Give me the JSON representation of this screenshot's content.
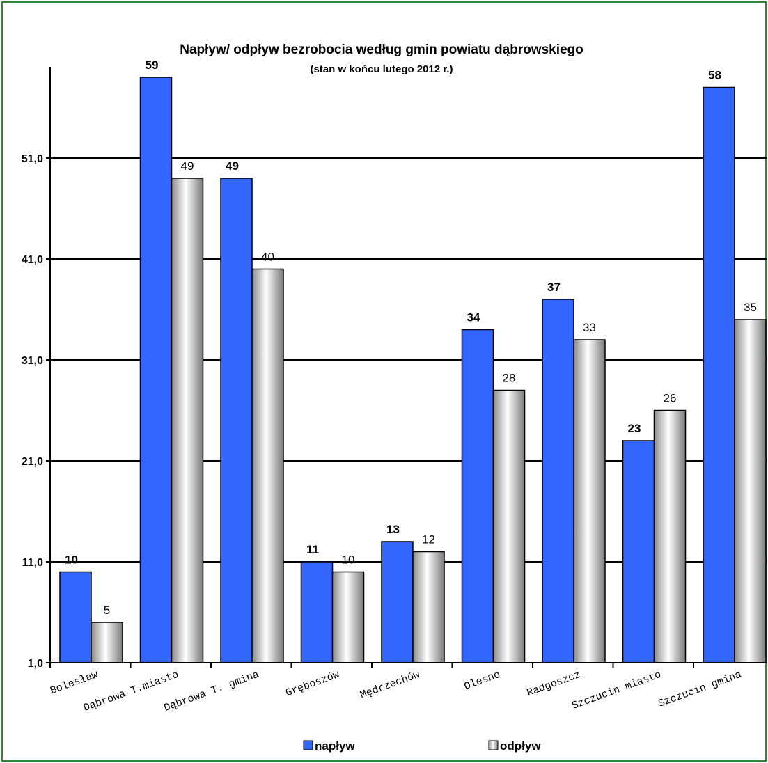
{
  "chart_data": {
    "type": "bar",
    "title": "Napływ/ odpływ bezrobocia według gmin powiatu dąbrowskiego",
    "subtitle": "(stan w końcu lutego 2012 r.)",
    "categories": [
      "Bolesław",
      "Dąbrowa T.miasto",
      "Dąbrowa T. gmina",
      "Gręboszów",
      "Mędrzechów",
      "Olesno",
      "Radgoszcz",
      "Szczucin miasto",
      "Szczucin gmina"
    ],
    "series": [
      {
        "name": "napływ",
        "values": [
          10,
          59,
          49,
          11,
          13,
          34,
          37,
          23,
          58
        ],
        "color": "#3366ff"
      },
      {
        "name": "odpływ",
        "values": [
          5,
          49,
          40,
          10,
          12,
          28,
          33,
          26,
          35
        ],
        "color": "#e8e8e8"
      }
    ],
    "ylim": [
      1,
      60
    ],
    "yticks": [
      "1,0",
      "11,0",
      "21,0",
      "31,0",
      "41,0",
      "51,0"
    ],
    "ytick_values": [
      1,
      11,
      21,
      31,
      41,
      51
    ],
    "grid": true,
    "legend_position": "bottom"
  }
}
